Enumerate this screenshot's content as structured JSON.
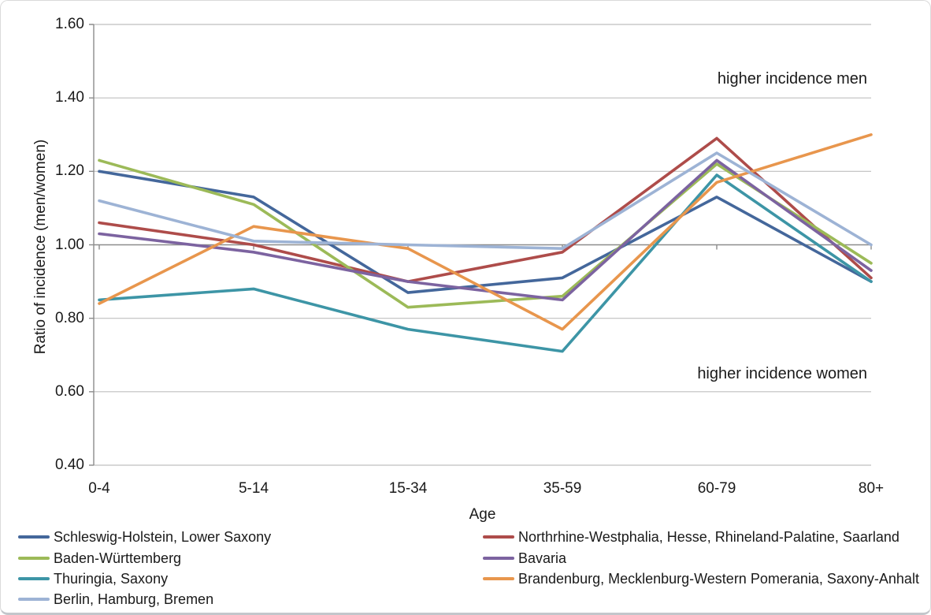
{
  "chart_data": {
    "type": "line",
    "title": "",
    "categories": [
      "0-4",
      "5-14",
      "15-34",
      "35-59",
      "60-79",
      "80+"
    ],
    "xlabel": "Age",
    "ylabel": "Ratio of incidence (men/women)",
    "ylim": [
      0.4,
      1.6
    ],
    "ytick_step": 0.2,
    "ytick_labels": [
      "0.40",
      "0.60",
      "0.80",
      "1.00",
      "1.20",
      "1.40",
      "1.60"
    ],
    "grid": true,
    "x_axis_crosses_at": 1.0,
    "annotations": [
      {
        "id": "men",
        "text": "higher incidence men"
      },
      {
        "id": "women",
        "text": "higher incidence women"
      }
    ],
    "series": [
      {
        "name": "Schleswig-Holstein, Lower Saxony",
        "color": "#44679B",
        "values": [
          1.2,
          1.13,
          0.87,
          0.91,
          1.13,
          0.9
        ]
      },
      {
        "name": "Northrhine-Westphalia, Hesse, Rhineland-Palatine, Saarland",
        "color": "#AE4C4A",
        "values": [
          1.06,
          1.0,
          0.9,
          0.98,
          1.29,
          0.91
        ]
      },
      {
        "name": "Baden-Württemberg",
        "color": "#9CBA58",
        "values": [
          1.23,
          1.11,
          0.83,
          0.86,
          1.22,
          0.95
        ]
      },
      {
        "name": "Bavaria",
        "color": "#7C63A0",
        "values": [
          1.03,
          0.98,
          0.9,
          0.85,
          1.23,
          0.93
        ]
      },
      {
        "name": "Thuringia, Saxony",
        "color": "#3D95A6",
        "values": [
          0.85,
          0.88,
          0.77,
          0.71,
          1.19,
          0.9
        ]
      },
      {
        "name": "Brandenburg, Mecklenburg-Western Pomerania,  Saxony-Anhalt",
        "color": "#E8964D",
        "values": [
          0.84,
          1.05,
          0.99,
          0.77,
          1.17,
          1.3
        ]
      },
      {
        "name": "Berlin, Hamburg, Bremen",
        "color": "#9DB3D5",
        "values": [
          1.12,
          1.01,
          1.0,
          0.99,
          1.25,
          1.0
        ]
      }
    ],
    "legend": {
      "position": "bottom",
      "columns": [
        [
          "Schleswig-Holstein, Lower Saxony",
          "Baden-Württemberg",
          "Thuringia, Saxony",
          "Berlin, Hamburg, Bremen"
        ],
        [
          "Northrhine-Westphalia, Hesse, Rhineland-Palatine, Saarland",
          "Bavaria",
          "Brandenburg, Mecklenburg-Western Pomerania,  Saxony-Anhalt"
        ]
      ]
    }
  }
}
